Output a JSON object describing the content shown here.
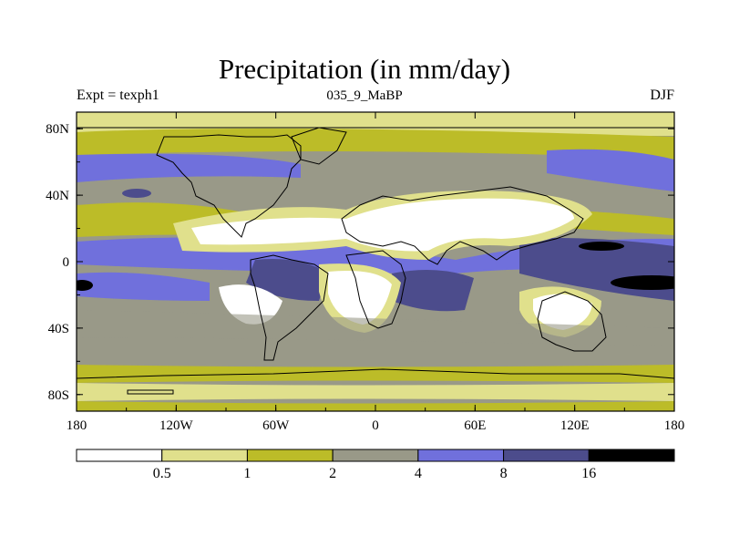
{
  "title": "Precipitation (in mm/day)",
  "subtitle_left": "Expt = texph1",
  "subtitle_center": "035_9_MaBP",
  "subtitle_right": "DJF",
  "axes": {
    "x_ticks": [
      {
        "value": -180,
        "label": "180"
      },
      {
        "value": -120,
        "label": "120W"
      },
      {
        "value": -60,
        "label": "60W"
      },
      {
        "value": 0,
        "label": "0"
      },
      {
        "value": 60,
        "label": "60E"
      },
      {
        "value": 120,
        "label": "120E"
      },
      {
        "value": 180,
        "label": "180"
      }
    ],
    "y_ticks": [
      {
        "value": 80,
        "label": "80N"
      },
      {
        "value": 40,
        "label": "40N"
      },
      {
        "value": 0,
        "label": "0"
      },
      {
        "value": -40,
        "label": "40S"
      },
      {
        "value": -80,
        "label": "80S"
      }
    ],
    "lon_range": [
      -180,
      180
    ],
    "lat_range": [
      -90,
      90
    ]
  },
  "colorbar": {
    "labels": [
      "0.5",
      "1",
      "2",
      "4",
      "8",
      "16"
    ],
    "colors": [
      "#ffffff",
      "#e0e08c",
      "#bcbc28",
      "#999988",
      "#7070dc",
      "#4c4c8c",
      "#000000"
    ]
  }
}
